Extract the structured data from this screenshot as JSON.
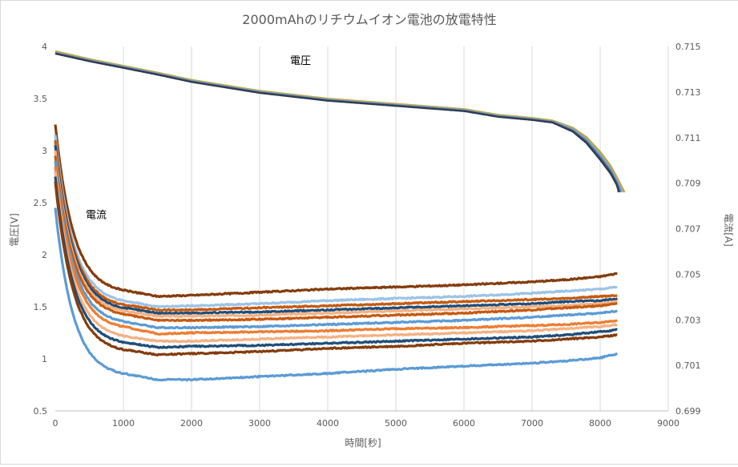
{
  "chart_data": {
    "type": "line",
    "title": "2000mAhのリチウムイオン電池の放電特性",
    "xlabel": "時間[秒]",
    "ylabel_left": "電圧[V]",
    "ylabel_right": "電流[A]",
    "xlim": [
      0,
      9000
    ],
    "xticks": [
      0,
      1000,
      2000,
      3000,
      4000,
      5000,
      6000,
      7000,
      8000,
      9000
    ],
    "ylim_left": [
      0.5,
      4
    ],
    "yticks_left": [
      "0.5",
      "1",
      "1.5",
      "2",
      "2.5",
      "3",
      "3.5",
      "4"
    ],
    "ylim_right": [
      0.699,
      0.715
    ],
    "yticks_right": [
      "0.699",
      "0.701",
      "0.703",
      "0.705",
      "0.707",
      "0.709",
      "0.711",
      "0.713",
      "0.715"
    ],
    "grid": "vertical",
    "annotations": [
      {
        "text": "電圧",
        "x": 3600,
        "y": 3.83
      },
      {
        "text": "電流",
        "x": 600,
        "y": 2.35
      }
    ],
    "voltage_series": [
      {
        "color": "#c8a224",
        "end_x": 8360,
        "x": [
          0,
          500,
          1000,
          1500,
          2000,
          3000,
          4000,
          5000,
          6000,
          6500,
          7000,
          7300,
          7600,
          7800,
          8000,
          8150,
          8250,
          8360
        ],
        "y": [
          3.955,
          3.88,
          3.815,
          3.75,
          3.68,
          3.575,
          3.5,
          3.45,
          3.4,
          3.345,
          3.315,
          3.29,
          3.22,
          3.13,
          2.99,
          2.86,
          2.74,
          2.6
        ]
      },
      {
        "color": "#a5a5a5",
        "end_x": 8340,
        "x": [
          0,
          500,
          1000,
          1500,
          2000,
          3000,
          4000,
          5000,
          6000,
          6500,
          7000,
          7300,
          7600,
          7800,
          8000,
          8150,
          8250,
          8340
        ],
        "y": [
          3.945,
          3.872,
          3.808,
          3.743,
          3.673,
          3.568,
          3.493,
          3.443,
          3.393,
          3.338,
          3.308,
          3.283,
          3.21,
          3.115,
          2.97,
          2.84,
          2.72,
          2.6
        ]
      },
      {
        "color": "#5b9bd5",
        "end_x": 8310,
        "x": [
          0,
          500,
          1000,
          1500,
          2000,
          3000,
          4000,
          5000,
          6000,
          6500,
          7000,
          7300,
          7600,
          7800,
          8000,
          8150,
          8250,
          8310
        ],
        "y": [
          3.94,
          3.867,
          3.803,
          3.738,
          3.668,
          3.563,
          3.488,
          3.438,
          3.388,
          3.333,
          3.303,
          3.278,
          3.2,
          3.1,
          2.95,
          2.82,
          2.7,
          2.6
        ]
      },
      {
        "color": "#44546a",
        "end_x": 8290,
        "x": [
          0,
          500,
          1000,
          1500,
          2000,
          3000,
          4000,
          5000,
          6000,
          6500,
          7000,
          7300,
          7600,
          7800,
          8000,
          8150,
          8250,
          8290
        ],
        "y": [
          3.935,
          3.862,
          3.798,
          3.733,
          3.663,
          3.558,
          3.483,
          3.433,
          3.383,
          3.328,
          3.298,
          3.273,
          3.19,
          3.085,
          2.93,
          2.8,
          2.68,
          2.6
        ]
      },
      {
        "color": "#2e3a4e",
        "end_x": 8270,
        "x": [
          0,
          500,
          1000,
          1500,
          2000,
          3000,
          4000,
          5000,
          6000,
          6500,
          7000,
          7300,
          7600,
          7800,
          8000,
          8150,
          8250,
          8270
        ],
        "y": [
          3.93,
          3.857,
          3.793,
          3.728,
          3.658,
          3.553,
          3.478,
          3.428,
          3.378,
          3.323,
          3.293,
          3.268,
          3.18,
          3.07,
          2.91,
          2.78,
          2.66,
          2.6
        ]
      }
    ],
    "current_series": [
      {
        "color": "#843c0c",
        "x": [
          0,
          1000,
          1500,
          2000,
          3000,
          4000,
          5000,
          6000,
          7000,
          7500,
          8000,
          8250
        ],
        "y": [
          3.25,
          1.66,
          1.6,
          1.61,
          1.64,
          1.67,
          1.69,
          1.71,
          1.74,
          1.76,
          1.79,
          1.82
        ]
      },
      {
        "color": "#9dc3e6",
        "x": [
          0,
          1000,
          1500,
          2000,
          3000,
          4000,
          5000,
          6000,
          7000,
          7500,
          8000,
          8250
        ],
        "y": [
          3.15,
          1.56,
          1.5,
          1.51,
          1.53,
          1.56,
          1.58,
          1.6,
          1.63,
          1.65,
          1.67,
          1.69
        ]
      },
      {
        "color": "#c55a11",
        "x": [
          0,
          1000,
          1500,
          2000,
          3000,
          4000,
          5000,
          6000,
          7000,
          7500,
          8000,
          8250
        ],
        "y": [
          3.1,
          1.52,
          1.47,
          1.47,
          1.49,
          1.51,
          1.53,
          1.55,
          1.57,
          1.58,
          1.6,
          1.61
        ]
      },
      {
        "color": "#1f4e79",
        "x": [
          0,
          1000,
          1500,
          2000,
          3000,
          4000,
          5000,
          6000,
          7000,
          7500,
          8000,
          8250
        ],
        "y": [
          3.05,
          1.49,
          1.44,
          1.44,
          1.45,
          1.47,
          1.49,
          1.51,
          1.53,
          1.55,
          1.56,
          1.58
        ]
      },
      {
        "color": "#f4b183",
        "x": [
          0,
          1000,
          1500,
          2000,
          3000,
          4000,
          5000,
          6000,
          7000,
          7500,
          8000,
          8250
        ],
        "y": [
          3.0,
          1.46,
          1.41,
          1.41,
          1.42,
          1.44,
          1.46,
          1.48,
          1.5,
          1.51,
          1.53,
          1.55
        ]
      },
      {
        "color": "#c55a11",
        "x": [
          0,
          1000,
          1500,
          2000,
          3000,
          4000,
          5000,
          6000,
          7000,
          7500,
          8000,
          8250
        ],
        "y": [
          2.95,
          1.43,
          1.37,
          1.37,
          1.38,
          1.4,
          1.42,
          1.44,
          1.47,
          1.49,
          1.51,
          1.53
        ]
      },
      {
        "color": "#5b9bd5",
        "x": [
          0,
          1000,
          1500,
          2000,
          3000,
          4000,
          5000,
          6000,
          7000,
          7500,
          8000,
          8250
        ],
        "y": [
          2.9,
          1.36,
          1.3,
          1.3,
          1.31,
          1.33,
          1.35,
          1.37,
          1.4,
          1.42,
          1.44,
          1.46
        ]
      },
      {
        "color": "#ed7d31",
        "x": [
          0,
          1000,
          1500,
          2000,
          3000,
          4000,
          5000,
          6000,
          7000,
          7500,
          8000,
          8250
        ],
        "y": [
          2.85,
          1.31,
          1.24,
          1.25,
          1.26,
          1.27,
          1.29,
          1.3,
          1.32,
          1.33,
          1.35,
          1.37
        ]
      },
      {
        "color": "#f4b183",
        "x": [
          0,
          1000,
          1500,
          2000,
          3000,
          4000,
          5000,
          6000,
          7000,
          7500,
          8000,
          8250
        ],
        "y": [
          2.8,
          1.22,
          1.17,
          1.17,
          1.19,
          1.21,
          1.23,
          1.25,
          1.27,
          1.29,
          1.31,
          1.33
        ]
      },
      {
        "color": "#1f4e79",
        "x": [
          0,
          1000,
          1500,
          2000,
          3000,
          4000,
          5000,
          6000,
          7000,
          7500,
          8000,
          8250
        ],
        "y": [
          2.75,
          1.16,
          1.11,
          1.12,
          1.13,
          1.15,
          1.17,
          1.19,
          1.21,
          1.23,
          1.26,
          1.28
        ]
      },
      {
        "color": "#843c0c",
        "x": [
          0,
          1000,
          1500,
          2000,
          3000,
          4000,
          5000,
          6000,
          7000,
          7500,
          8000,
          8250
        ],
        "y": [
          2.7,
          1.09,
          1.04,
          1.05,
          1.07,
          1.1,
          1.12,
          1.15,
          1.17,
          1.19,
          1.21,
          1.23
        ]
      },
      {
        "color": "#5b9bd5",
        "x": [
          0,
          1000,
          1500,
          2000,
          3000,
          4000,
          5000,
          6000,
          7000,
          7500,
          8000,
          8250
        ],
        "y": [
          2.45,
          0.86,
          0.8,
          0.8,
          0.83,
          0.86,
          0.9,
          0.93,
          0.96,
          0.98,
          1.01,
          1.05
        ]
      }
    ]
  }
}
